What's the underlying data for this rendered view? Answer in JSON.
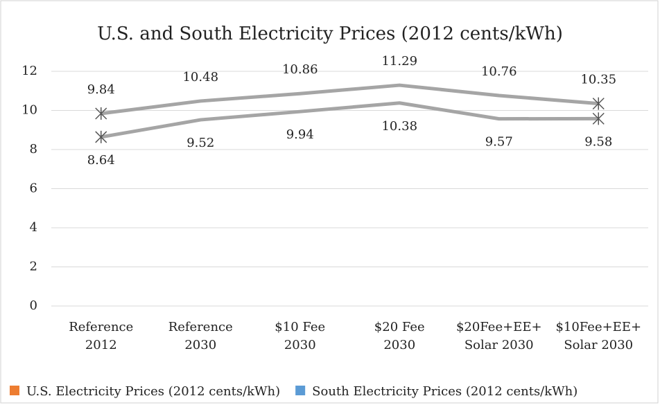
{
  "chart_data": {
    "type": "line",
    "title": "U.S. and South Electricity Prices (2012 cents/kWh)",
    "categories": [
      [
        "Reference",
        "2012"
      ],
      [
        "Reference",
        "2030"
      ],
      [
        "$10 Fee",
        "2030"
      ],
      [
        "$20 Fee",
        "2030"
      ],
      [
        "$20Fee+EE+",
        "Solar 2030"
      ],
      [
        "$10Fee+EE+",
        "Solar 2030"
      ]
    ],
    "series": [
      {
        "name": "U.S. Electricity Prices (2012 cents/kWh)",
        "color": "#ed7d31",
        "values": [
          9.84,
          10.48,
          10.86,
          11.29,
          10.76,
          10.35
        ],
        "label_position": "above"
      },
      {
        "name": "South Electricity Prices (2012 cents/kWh)",
        "color": "#5b9bd5",
        "values": [
          8.64,
          9.52,
          9.94,
          10.38,
          9.57,
          9.58
        ],
        "label_position": "below"
      }
    ],
    "line_color": "#a5a5a5",
    "ylim": [
      0,
      12
    ],
    "yticks": [
      0,
      2,
      4,
      6,
      8,
      10,
      12
    ],
    "grid": true,
    "legend": "bottom"
  }
}
